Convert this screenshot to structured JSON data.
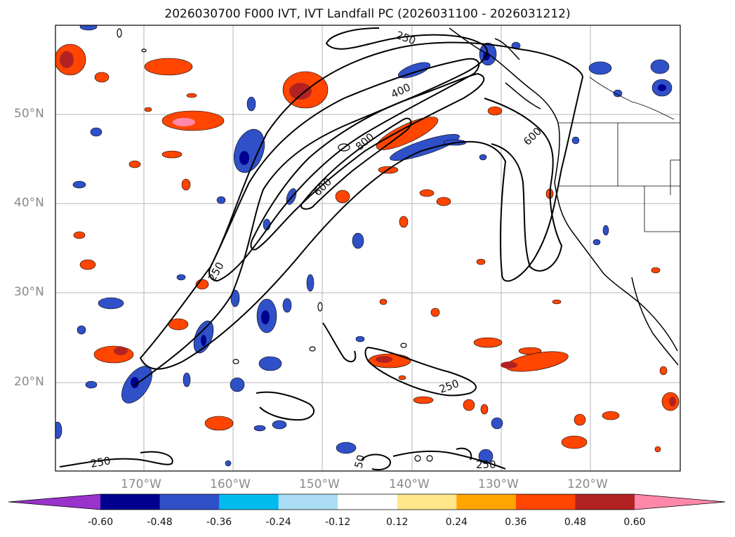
{
  "title": "2026030700 F000 IVT, IVT Landfall PC (2026031100 - 2026031212)",
  "map": {
    "lat_labels": [
      "50°N",
      "40°N",
      "30°N",
      "20°N"
    ],
    "lon_labels": [
      "170°W",
      "160°W",
      "150°W",
      "140°W",
      "130°W",
      "120°W"
    ],
    "contour_labels": [
      "250",
      "400",
      "600",
      "800",
      "600",
      "250",
      "250",
      "250",
      "50",
      "250"
    ],
    "gridlines": true
  },
  "colorbar": {
    "tick_labels": [
      "-0.60",
      "-0.48",
      "-0.36",
      "-0.24",
      "-0.12",
      "0.12",
      "0.24",
      "0.36",
      "0.48",
      "0.60"
    ],
    "colors": [
      "#9933cc",
      "#000090",
      "#3050c8",
      "#00bbee",
      "#aaddf5",
      "#ffffff",
      "#ffe68a",
      "#ffa500",
      "#ff4500",
      "#b22222",
      "#ff88aa"
    ]
  }
}
